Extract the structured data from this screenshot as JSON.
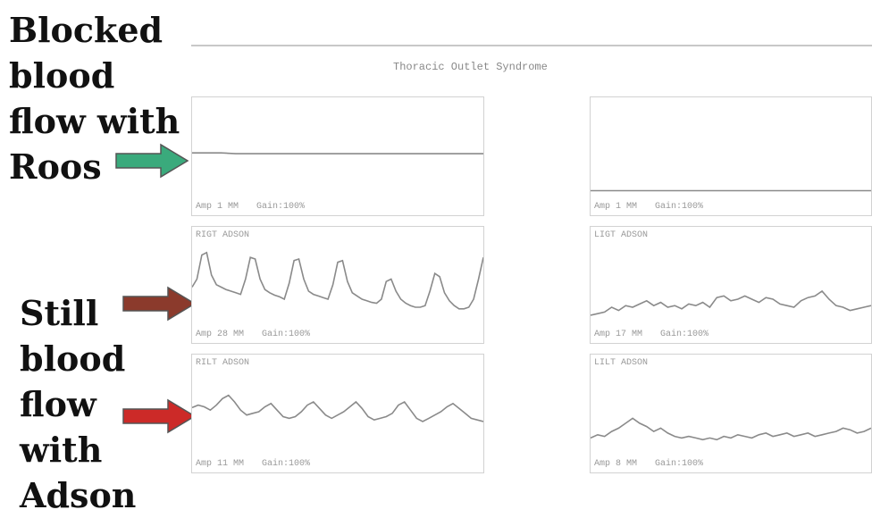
{
  "annotations": {
    "roos_label": [
      "Blocked",
      "blood",
      "flow with",
      "Roos"
    ],
    "adson_label": [
      "Still",
      "blood",
      "flow",
      "with",
      "Adson"
    ]
  },
  "header": {
    "left_text": "",
    "right_text": ""
  },
  "report_title": "Thoracic Outlet Syndrome",
  "colors": {
    "roos_arrow": "#3aaa7c",
    "adson_arrow_top": "#8b3a2c",
    "adson_arrow_bottom": "#cc2a28",
    "trace": "#8a8a8a",
    "panel_border": "#d2d2d2"
  },
  "chart_data": [
    {
      "type": "line",
      "title": "",
      "amp_label": "Amp 1 MM",
      "gain_label": "Gain:100%",
      "ylim": [
        0,
        1
      ],
      "x": [
        0,
        1,
        2,
        3,
        4,
        5,
        6,
        7,
        8,
        9,
        10,
        11,
        12,
        13,
        14,
        15,
        16,
        17,
        18,
        19,
        20
      ],
      "values": [
        0.52,
        0.52,
        0.52,
        0.51,
        0.51,
        0.51,
        0.51,
        0.51,
        0.51,
        0.51,
        0.51,
        0.51,
        0.51,
        0.51,
        0.51,
        0.51,
        0.51,
        0.51,
        0.51,
        0.51,
        0.51
      ]
    },
    {
      "type": "line",
      "title": "",
      "amp_label": "Amp 1 MM",
      "gain_label": "Gain:100%",
      "ylim": [
        0,
        1
      ],
      "x": [
        0,
        1,
        2,
        3,
        4,
        5,
        6,
        7,
        8,
        9,
        10,
        11,
        12,
        13,
        14,
        15,
        16,
        17,
        18,
        19,
        20
      ],
      "values": [
        0.06,
        0.06,
        0.06,
        0.06,
        0.06,
        0.06,
        0.06,
        0.06,
        0.06,
        0.06,
        0.06,
        0.06,
        0.06,
        0.06,
        0.06,
        0.06,
        0.06,
        0.06,
        0.06,
        0.06,
        0.06
      ]
    },
    {
      "type": "line",
      "title": "RIGT ADSON",
      "amp_label": "Amp 28 MM",
      "gain_label": "Gain:100%",
      "ylim": [
        0,
        1
      ],
      "x": [
        0,
        1,
        2,
        3,
        4,
        5,
        6,
        7,
        8,
        9,
        10,
        11,
        12,
        13,
        14,
        15,
        16,
        17,
        18,
        19,
        20,
        21,
        22,
        23,
        24,
        25,
        26,
        27,
        28,
        29,
        30,
        31,
        32,
        33,
        34,
        35,
        36,
        37,
        38,
        39,
        40,
        41,
        42,
        43,
        44,
        45,
        46,
        47,
        48,
        49,
        50,
        51,
        52,
        53,
        54,
        55,
        56,
        57,
        58,
        59,
        60
      ],
      "values": [
        0.45,
        0.55,
        0.85,
        0.88,
        0.6,
        0.48,
        0.45,
        0.42,
        0.4,
        0.38,
        0.36,
        0.55,
        0.82,
        0.8,
        0.55,
        0.42,
        0.38,
        0.35,
        0.33,
        0.3,
        0.5,
        0.78,
        0.8,
        0.55,
        0.4,
        0.36,
        0.34,
        0.32,
        0.3,
        0.48,
        0.76,
        0.78,
        0.52,
        0.38,
        0.34,
        0.3,
        0.28,
        0.26,
        0.25,
        0.3,
        0.52,
        0.55,
        0.4,
        0.3,
        0.25,
        0.22,
        0.2,
        0.2,
        0.22,
        0.4,
        0.62,
        0.58,
        0.38,
        0.28,
        0.22,
        0.18,
        0.18,
        0.2,
        0.3,
        0.55,
        0.82
      ]
    },
    {
      "type": "line",
      "title": "LIGT ADSON",
      "amp_label": "Amp 17 MM",
      "gain_label": "Gain:100%",
      "ylim": [
        0,
        1
      ],
      "x": [
        0,
        1,
        2,
        3,
        4,
        5,
        6,
        7,
        8,
        9,
        10,
        11,
        12,
        13,
        14,
        15,
        16,
        17,
        18,
        19,
        20,
        21,
        22,
        23,
        24,
        25,
        26,
        27,
        28,
        29,
        30,
        31,
        32,
        33,
        34,
        35,
        36,
        37,
        38,
        39,
        40
      ],
      "values": [
        0.1,
        0.12,
        0.14,
        0.2,
        0.16,
        0.22,
        0.2,
        0.24,
        0.28,
        0.22,
        0.26,
        0.2,
        0.22,
        0.18,
        0.24,
        0.22,
        0.26,
        0.2,
        0.32,
        0.34,
        0.28,
        0.3,
        0.34,
        0.3,
        0.26,
        0.32,
        0.3,
        0.24,
        0.22,
        0.2,
        0.28,
        0.32,
        0.34,
        0.4,
        0.3,
        0.22,
        0.2,
        0.16,
        0.18,
        0.2,
        0.22
      ]
    },
    {
      "type": "line",
      "title": "RILT ADSON",
      "amp_label": "Amp 11 MM",
      "gain_label": "Gain:100%",
      "ylim": [
        0,
        1
      ],
      "x": [
        0,
        1,
        2,
        3,
        4,
        5,
        6,
        7,
        8,
        9,
        10,
        11,
        12,
        13,
        14,
        15,
        16,
        17,
        18,
        19,
        20,
        21,
        22,
        23,
        24,
        25,
        26,
        27,
        28,
        29,
        30,
        31,
        32,
        33,
        34,
        35,
        36,
        37,
        38,
        39,
        40,
        41,
        42,
        43,
        44,
        45,
        46,
        47,
        48
      ],
      "values": [
        0.55,
        0.58,
        0.56,
        0.52,
        0.58,
        0.66,
        0.7,
        0.62,
        0.52,
        0.46,
        0.48,
        0.5,
        0.56,
        0.6,
        0.52,
        0.44,
        0.42,
        0.44,
        0.5,
        0.58,
        0.62,
        0.54,
        0.46,
        0.42,
        0.46,
        0.5,
        0.56,
        0.62,
        0.54,
        0.44,
        0.4,
        0.42,
        0.44,
        0.48,
        0.58,
        0.62,
        0.52,
        0.42,
        0.38,
        0.42,
        0.46,
        0.5,
        0.56,
        0.6,
        0.54,
        0.48,
        0.42,
        0.4,
        0.38
      ]
    },
    {
      "type": "line",
      "title": "LILT ADSON",
      "amp_label": "Amp 8 MM",
      "gain_label": "Gain:100%",
      "ylim": [
        0,
        1
      ],
      "x": [
        0,
        1,
        2,
        3,
        4,
        5,
        6,
        7,
        8,
        9,
        10,
        11,
        12,
        13,
        14,
        15,
        16,
        17,
        18,
        19,
        20,
        21,
        22,
        23,
        24,
        25,
        26,
        27,
        28,
        29,
        30,
        31,
        32,
        33,
        34,
        35,
        36,
        37,
        38,
        39,
        40
      ],
      "values": [
        0.18,
        0.22,
        0.2,
        0.26,
        0.3,
        0.36,
        0.42,
        0.36,
        0.32,
        0.26,
        0.3,
        0.24,
        0.2,
        0.18,
        0.2,
        0.18,
        0.16,
        0.18,
        0.16,
        0.2,
        0.18,
        0.22,
        0.2,
        0.18,
        0.22,
        0.24,
        0.2,
        0.22,
        0.24,
        0.2,
        0.22,
        0.24,
        0.2,
        0.22,
        0.24,
        0.26,
        0.3,
        0.28,
        0.24,
        0.26,
        0.3
      ]
    }
  ]
}
